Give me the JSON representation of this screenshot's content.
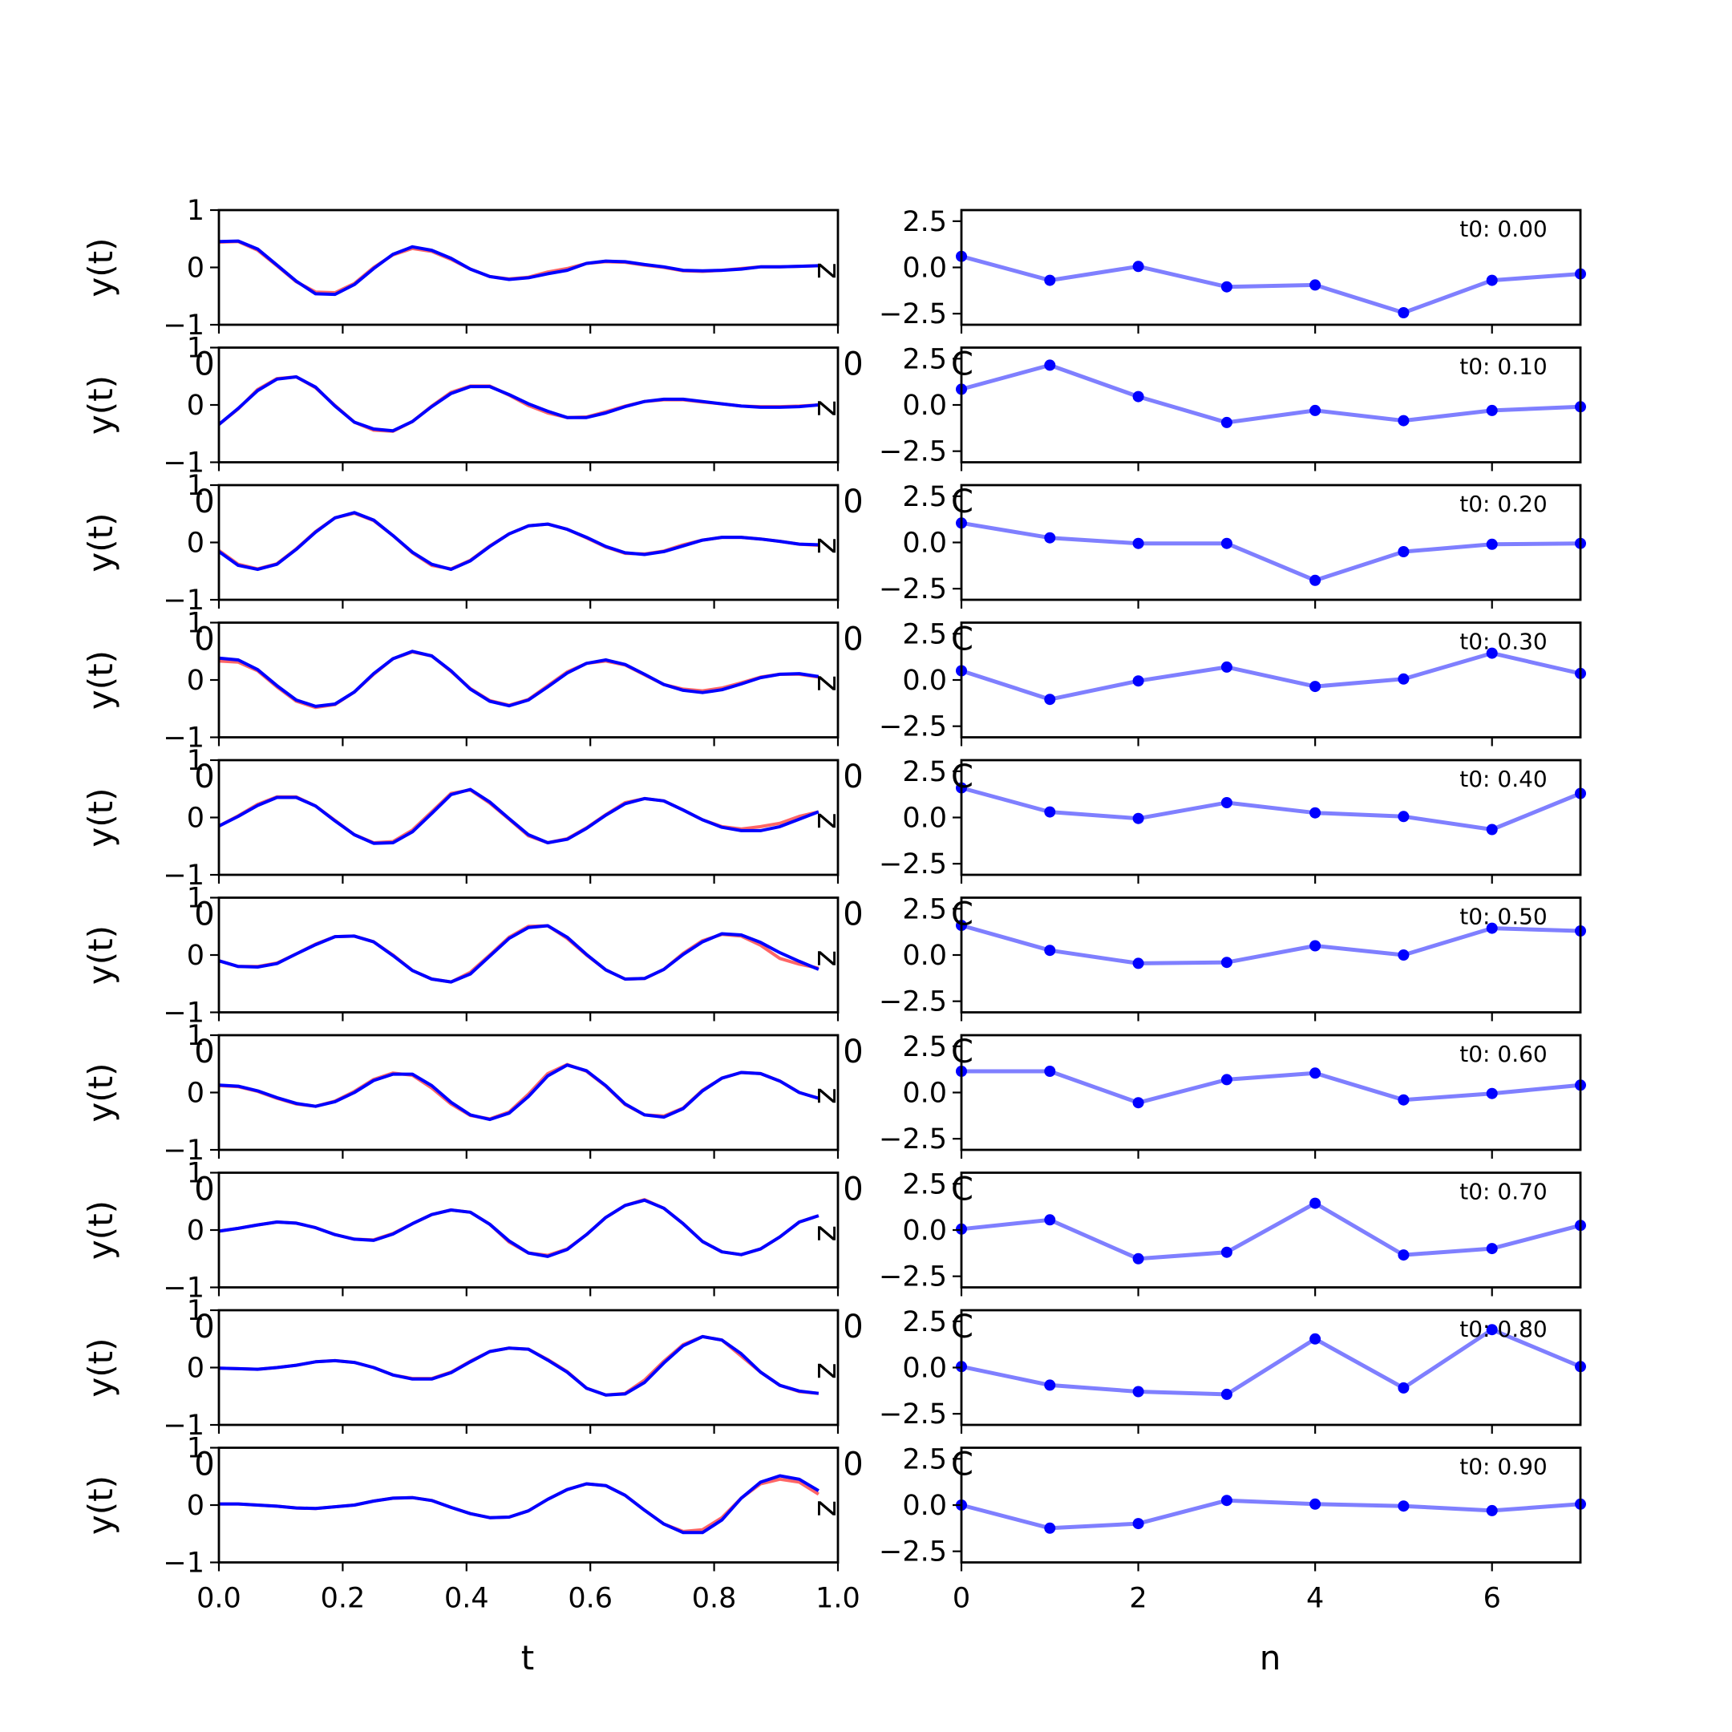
{
  "chart_data": [
    {
      "type": "line",
      "panel": "left",
      "xlabel": "t",
      "ylabel": "y(t)",
      "xlim": [
        0.0,
        1.0
      ],
      "ylim": [
        -1,
        1
      ],
      "x_ticks": [
        "0.0",
        "0.2",
        "0.4",
        "0.6",
        "0.8",
        "1.0"
      ],
      "y_ticks": [
        "-1",
        "0",
        "1"
      ],
      "y_tick_labels": [
        "−1",
        "0",
        "1"
      ],
      "overlap_tick_label": "0",
      "stray_label": "z",
      "sample_t_start": 0.0,
      "sample_t_step": 0.03125,
      "series_colors": [
        "#ff0000",
        "#0000ff"
      ],
      "series_opacity": [
        0.6,
        1.0
      ],
      "rows": [
        {
          "series": [
            [
              0.44,
              0.45,
              0.3,
              0.03,
              -0.25,
              -0.43,
              -0.44,
              -0.28,
              0.0,
              0.22,
              0.33,
              0.28,
              0.14,
              -0.03,
              -0.16,
              -0.2,
              -0.17,
              -0.08,
              -0.02,
              0.07,
              0.1,
              0.09,
              0.04,
              0.0,
              -0.06,
              -0.07,
              -0.05,
              -0.02,
              0.01,
              0.01,
              0.02,
              0.03
            ],
            [
              0.45,
              0.46,
              0.32,
              0.04,
              -0.24,
              -0.46,
              -0.47,
              -0.3,
              -0.02,
              0.23,
              0.36,
              0.3,
              0.16,
              -0.03,
              -0.16,
              -0.21,
              -0.18,
              -0.11,
              -0.05,
              0.07,
              0.11,
              0.1,
              0.05,
              0.01,
              -0.05,
              -0.06,
              -0.05,
              -0.03,
              0.01,
              0.01,
              0.02,
              0.03
            ]
          ]
        },
        {
          "series": [
            [
              -0.34,
              -0.07,
              0.27,
              0.46,
              0.49,
              0.3,
              -0.01,
              -0.3,
              -0.44,
              -0.46,
              -0.29,
              -0.02,
              0.22,
              0.33,
              0.33,
              0.17,
              -0.01,
              -0.14,
              -0.22,
              -0.21,
              -0.12,
              -0.02,
              0.06,
              0.09,
              0.09,
              0.05,
              0.02,
              -0.02,
              -0.03,
              -0.03,
              -0.02,
              0.0
            ],
            [
              -0.34,
              -0.06,
              0.25,
              0.45,
              0.49,
              0.31,
              -0.02,
              -0.3,
              -0.42,
              -0.45,
              -0.29,
              -0.03,
              0.2,
              0.32,
              0.32,
              0.18,
              0.02,
              -0.11,
              -0.22,
              -0.22,
              -0.14,
              -0.03,
              0.06,
              0.1,
              0.1,
              0.06,
              0.02,
              -0.02,
              -0.04,
              -0.04,
              -0.03,
              0.0
            ]
          ]
        },
        {
          "series": [
            [
              -0.14,
              -0.38,
              -0.46,
              -0.37,
              -0.11,
              0.19,
              0.43,
              0.51,
              0.38,
              0.12,
              -0.18,
              -0.4,
              -0.46,
              -0.31,
              -0.06,
              0.15,
              0.29,
              0.32,
              0.23,
              0.08,
              -0.08,
              -0.19,
              -0.2,
              -0.15,
              -0.04,
              0.04,
              0.09,
              0.09,
              0.06,
              0.02,
              -0.03,
              -0.05
            ],
            [
              -0.16,
              -0.4,
              -0.47,
              -0.38,
              -0.12,
              0.18,
              0.43,
              0.52,
              0.39,
              0.12,
              -0.17,
              -0.38,
              -0.47,
              -0.32,
              -0.07,
              0.15,
              0.29,
              0.32,
              0.23,
              0.09,
              -0.07,
              -0.18,
              -0.21,
              -0.16,
              -0.06,
              0.04,
              0.09,
              0.09,
              0.06,
              0.02,
              -0.03,
              -0.04
            ]
          ]
        },
        {
          "series": [
            [
              0.33,
              0.31,
              0.16,
              -0.12,
              -0.37,
              -0.48,
              -0.43,
              -0.21,
              0.1,
              0.37,
              0.49,
              0.42,
              0.15,
              -0.15,
              -0.36,
              -0.44,
              -0.34,
              -0.1,
              0.14,
              0.29,
              0.33,
              0.26,
              0.09,
              -0.08,
              -0.16,
              -0.19,
              -0.14,
              -0.05,
              0.05,
              0.1,
              0.1,
              0.05
            ],
            [
              0.38,
              0.35,
              0.18,
              -0.1,
              -0.35,
              -0.46,
              -0.42,
              -0.21,
              0.11,
              0.37,
              0.5,
              0.42,
              0.16,
              -0.16,
              -0.37,
              -0.45,
              -0.35,
              -0.12,
              0.12,
              0.29,
              0.35,
              0.27,
              0.1,
              -0.08,
              -0.18,
              -0.22,
              -0.17,
              -0.07,
              0.04,
              0.1,
              0.11,
              0.06
            ]
          ]
        },
        {
          "series": [
            [
              -0.15,
              0.03,
              0.23,
              0.36,
              0.36,
              0.2,
              -0.05,
              -0.3,
              -0.44,
              -0.42,
              -0.22,
              0.1,
              0.42,
              0.48,
              0.25,
              -0.03,
              -0.32,
              -0.44,
              -0.37,
              -0.18,
              0.05,
              0.26,
              0.33,
              0.29,
              0.13,
              -0.04,
              -0.16,
              -0.2,
              -0.16,
              -0.1,
              0.02,
              0.1
            ],
            [
              -0.15,
              0.02,
              0.21,
              0.35,
              0.35,
              0.2,
              -0.06,
              -0.3,
              -0.45,
              -0.44,
              -0.25,
              0.07,
              0.4,
              0.49,
              0.27,
              -0.02,
              -0.3,
              -0.44,
              -0.38,
              -0.19,
              0.04,
              0.24,
              0.33,
              0.29,
              0.13,
              -0.04,
              -0.17,
              -0.23,
              -0.23,
              -0.16,
              -0.03,
              0.1
            ]
          ]
        },
        {
          "series": [
            [
              -0.1,
              -0.2,
              -0.2,
              -0.14,
              0.02,
              0.19,
              0.32,
              0.33,
              0.23,
              0.0,
              -0.27,
              -0.42,
              -0.47,
              -0.3,
              0.0,
              0.31,
              0.5,
              0.51,
              0.29,
              0.0,
              -0.26,
              -0.42,
              -0.41,
              -0.25,
              0.03,
              0.25,
              0.36,
              0.33,
              0.17,
              -0.06,
              -0.16,
              -0.23
            ],
            [
              -0.1,
              -0.2,
              -0.21,
              -0.15,
              0.02,
              0.18,
              0.32,
              0.33,
              0.23,
              -0.01,
              -0.27,
              -0.42,
              -0.47,
              -0.33,
              -0.02,
              0.29,
              0.48,
              0.51,
              0.31,
              0.01,
              -0.26,
              -0.42,
              -0.41,
              -0.25,
              0.01,
              0.23,
              0.37,
              0.35,
              0.22,
              0.04,
              -0.11,
              -0.25
            ]
          ]
        },
        {
          "series": [
            [
              0.12,
              0.1,
              0.02,
              -0.1,
              -0.2,
              -0.24,
              -0.15,
              0.02,
              0.23,
              0.34,
              0.3,
              0.08,
              -0.2,
              -0.4,
              -0.46,
              -0.34,
              -0.03,
              0.33,
              0.49,
              0.37,
              0.11,
              -0.21,
              -0.39,
              -0.41,
              -0.27,
              0.04,
              0.25,
              0.35,
              0.33,
              0.2,
              0.0,
              -0.1
            ],
            [
              0.13,
              0.11,
              0.03,
              -0.09,
              -0.19,
              -0.24,
              -0.16,
              0.0,
              0.21,
              0.32,
              0.32,
              0.12,
              -0.17,
              -0.39,
              -0.47,
              -0.36,
              -0.07,
              0.29,
              0.48,
              0.38,
              0.12,
              -0.2,
              -0.39,
              -0.43,
              -0.28,
              0.03,
              0.25,
              0.35,
              0.33,
              0.2,
              0.0,
              -0.1
            ]
          ]
        },
        {
          "series": [
            [
              -0.02,
              0.03,
              0.09,
              0.14,
              0.12,
              0.04,
              -0.08,
              -0.16,
              -0.17,
              -0.06,
              0.11,
              0.27,
              0.35,
              0.31,
              0.1,
              -0.21,
              -0.4,
              -0.44,
              -0.33,
              -0.08,
              0.22,
              0.43,
              0.53,
              0.38,
              0.11,
              -0.2,
              -0.38,
              -0.43,
              -0.33,
              -0.12,
              0.14,
              0.25
            ],
            [
              -0.02,
              0.03,
              0.09,
              0.14,
              0.12,
              0.04,
              -0.08,
              -0.16,
              -0.18,
              -0.07,
              0.11,
              0.27,
              0.35,
              0.31,
              0.1,
              -0.19,
              -0.4,
              -0.46,
              -0.34,
              -0.08,
              0.22,
              0.43,
              0.52,
              0.38,
              0.11,
              -0.2,
              -0.38,
              -0.43,
              -0.33,
              -0.12,
              0.14,
              0.25
            ]
          ]
        },
        {
          "series": [
            [
              -0.01,
              -0.02,
              -0.03,
              0.0,
              0.04,
              0.1,
              0.12,
              0.09,
              0.0,
              -0.13,
              -0.19,
              -0.19,
              -0.08,
              0.11,
              0.28,
              0.34,
              0.32,
              0.14,
              -0.07,
              -0.36,
              -0.48,
              -0.45,
              -0.22,
              0.11,
              0.4,
              0.54,
              0.48,
              0.2,
              -0.08,
              -0.31,
              -0.42,
              -0.45
            ],
            [
              -0.01,
              -0.02,
              -0.03,
              0.0,
              0.04,
              0.1,
              0.12,
              0.09,
              0.0,
              -0.13,
              -0.2,
              -0.2,
              -0.09,
              0.1,
              0.28,
              0.34,
              0.32,
              0.13,
              -0.08,
              -0.36,
              -0.48,
              -0.46,
              -0.26,
              0.08,
              0.38,
              0.54,
              0.48,
              0.24,
              -0.08,
              -0.31,
              -0.41,
              -0.45
            ]
          ]
        },
        {
          "series": [
            [
              0.02,
              0.02,
              0.0,
              -0.02,
              -0.05,
              -0.06,
              -0.03,
              0.0,
              0.07,
              0.12,
              0.13,
              0.08,
              -0.04,
              -0.15,
              -0.22,
              -0.21,
              -0.1,
              0.1,
              0.27,
              0.37,
              0.34,
              0.17,
              -0.09,
              -0.33,
              -0.46,
              -0.43,
              -0.22,
              0.12,
              0.37,
              0.45,
              0.4,
              0.19
            ],
            [
              0.02,
              0.02,
              0.0,
              -0.02,
              -0.05,
              -0.06,
              -0.03,
              0.0,
              0.07,
              0.12,
              0.13,
              0.08,
              -0.04,
              -0.15,
              -0.22,
              -0.21,
              -0.1,
              0.1,
              0.27,
              0.37,
              0.34,
              0.17,
              -0.09,
              -0.33,
              -0.48,
              -0.48,
              -0.26,
              0.12,
              0.4,
              0.51,
              0.45,
              0.25
            ]
          ]
        }
      ]
    },
    {
      "type": "line",
      "panel": "right",
      "xlabel": "n",
      "ylabel": "",
      "xlim": [
        0,
        7
      ],
      "ylim": [
        -3.1,
        3.1
      ],
      "x_ticks": [
        "0",
        "2",
        "4",
        "6"
      ],
      "y_ticks": [
        "-2.5",
        "0.0",
        "2.5"
      ],
      "y_tick_labels": [
        "−2.5",
        "0.0",
        "2.5"
      ],
      "line_color": "#0000ff",
      "line_opacity": 0.5,
      "marker_color": "#0000ff",
      "overlap_tick_label": "0",
      "stray_label": "C",
      "x": [
        0,
        1,
        2,
        3,
        4,
        5,
        6,
        7
      ],
      "rows": [
        {
          "label": "t0: 0.00",
          "values": [
            0.6,
            -0.7,
            0.05,
            -1.05,
            -0.95,
            -2.45,
            -0.7,
            -0.35
          ]
        },
        {
          "label": "t0: 0.10",
          "values": [
            0.85,
            2.15,
            0.45,
            -0.95,
            -0.3,
            -0.85,
            -0.3,
            -0.1
          ]
        },
        {
          "label": "t0: 0.20",
          "values": [
            1.05,
            0.25,
            -0.05,
            -0.05,
            -2.05,
            -0.5,
            -0.1,
            -0.05
          ]
        },
        {
          "label": "t0: 0.30",
          "values": [
            0.5,
            -1.05,
            -0.05,
            0.7,
            -0.35,
            0.05,
            1.45,
            0.35
          ]
        },
        {
          "label": "t0: 0.40",
          "values": [
            1.6,
            0.3,
            -0.05,
            0.8,
            0.25,
            0.05,
            -0.65,
            1.3
          ]
        },
        {
          "label": "t0: 0.50",
          "values": [
            1.6,
            0.25,
            -0.45,
            -0.4,
            0.5,
            0.0,
            1.45,
            1.3
          ]
        },
        {
          "label": "t0: 0.60",
          "values": [
            1.15,
            1.15,
            -0.55,
            0.7,
            1.05,
            -0.4,
            -0.05,
            0.4
          ]
        },
        {
          "label": "t0: 0.70",
          "values": [
            0.05,
            0.55,
            -1.55,
            -1.2,
            1.45,
            -1.35,
            -1.0,
            0.25
          ]
        },
        {
          "label": "t0: 0.80",
          "values": [
            0.05,
            -0.95,
            -1.3,
            -1.45,
            1.55,
            -1.1,
            2.05,
            0.05
          ]
        },
        {
          "label": "t0: 0.90",
          "values": [
            0.0,
            -1.25,
            -1.0,
            0.25,
            0.05,
            -0.05,
            -0.3,
            0.05
          ]
        }
      ]
    }
  ]
}
